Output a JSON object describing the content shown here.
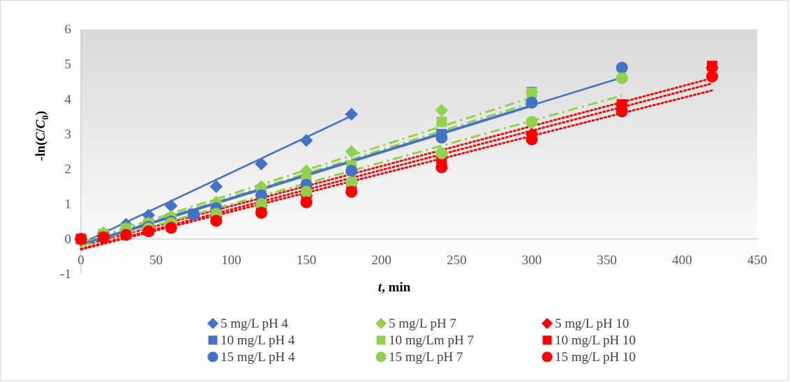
{
  "chart_data": {
    "type": "scatter",
    "title": "",
    "xlabel_italic": "t",
    "xlabel_rest": ", min",
    "ylabel_prefix": "-ln(",
    "ylabel_c": "C",
    "ylabel_slash": "/",
    "ylabel_c0": "C",
    "ylabel_sub": "0",
    "ylabel_suffix": ")",
    "xlim": [
      0,
      450
    ],
    "ylim": [
      -1,
      6
    ],
    "xticks": [
      "0",
      "50",
      "100",
      "150",
      "200",
      "250",
      "300",
      "350",
      "400",
      "450"
    ],
    "yticks": [
      "-1",
      "0",
      "1",
      "2",
      "3",
      "4",
      "5",
      "6"
    ],
    "background": "gradient grey to white (top to bottom)",
    "legend_position": "bottom",
    "series": [
      {
        "name": "5 mg/L pH 4",
        "marker": "diamond",
        "color": "#4472C4",
        "line": "solid",
        "x": [
          0,
          15,
          30,
          45,
          60,
          90,
          120,
          150,
          180
        ],
        "y": [
          0,
          0.15,
          0.42,
          0.68,
          0.95,
          1.5,
          2.15,
          2.82,
          3.57
        ],
        "fit": [
          [
            0,
            -0.13
          ],
          [
            180,
            3.52
          ]
        ]
      },
      {
        "name": "5 mg/L pH 7",
        "marker": "diamond",
        "color": "#92D050",
        "line": "dashdot",
        "x": [
          0,
          15,
          30,
          45,
          60,
          90,
          120,
          150,
          180,
          240,
          300
        ],
        "y": [
          0,
          0.18,
          0.3,
          0.45,
          0.65,
          1.05,
          1.5,
          1.95,
          2.5,
          3.68,
          4.2
        ],
        "fit": [
          [
            0,
            -0.1
          ],
          [
            300,
            4.05
          ]
        ]
      },
      {
        "name": "5 mg/L pH 10",
        "marker": "diamond",
        "color": "#FF0000",
        "line": "dotted",
        "x": [
          0,
          15,
          30,
          45,
          60,
          90,
          120,
          150,
          180,
          240,
          300,
          360,
          420
        ],
        "y": [
          0,
          0.08,
          0.2,
          0.3,
          0.42,
          0.65,
          0.95,
          1.25,
          1.6,
          2.35,
          3.0,
          3.82,
          4.9
        ],
        "fit": [
          [
            0,
            -0.2
          ],
          [
            420,
            4.6
          ]
        ]
      },
      {
        "name": "10 mg/L pH 4",
        "marker": "square",
        "color": "#4472C4",
        "line": "solid",
        "x": [
          0,
          15,
          30,
          45,
          60,
          75,
          90,
          120,
          150,
          180,
          240,
          300
        ],
        "y": [
          0,
          0.1,
          0.25,
          0.4,
          0.55,
          0.72,
          0.95,
          1.35,
          1.65,
          2.0,
          3.0,
          4.2
        ],
        "fit": [
          [
            0,
            -0.18
          ],
          [
            300,
            3.8
          ]
        ]
      },
      {
        "name": "10 mg/Lm pH 7",
        "marker": "square",
        "color": "#92D050",
        "line": "dashdot",
        "x": [
          0,
          15,
          30,
          45,
          60,
          90,
          120,
          150,
          180,
          240,
          300
        ],
        "y": [
          0,
          0.15,
          0.3,
          0.45,
          0.6,
          0.95,
          1.35,
          1.72,
          2.1,
          3.35,
          4.18
        ],
        "fit": [
          [
            0,
            -0.15
          ],
          [
            300,
            3.9
          ]
        ]
      },
      {
        "name": "10 mg/L pH 10",
        "marker": "square",
        "color": "#FF0000",
        "line": "dotted",
        "x": [
          0,
          15,
          30,
          45,
          60,
          90,
          120,
          150,
          180,
          240,
          300,
          360,
          420
        ],
        "y": [
          0,
          0.06,
          0.15,
          0.25,
          0.38,
          0.58,
          0.82,
          1.12,
          1.45,
          2.15,
          2.95,
          3.85,
          4.95
        ],
        "fit": [
          [
            0,
            -0.28
          ],
          [
            420,
            4.45
          ]
        ]
      },
      {
        "name": "15 mg/L pH 4",
        "marker": "circle",
        "color": "#4472C4",
        "line": "solid",
        "x": [
          0,
          15,
          30,
          45,
          60,
          75,
          90,
          120,
          150,
          180,
          240,
          300,
          360
        ],
        "y": [
          0,
          0.08,
          0.2,
          0.35,
          0.5,
          0.7,
          0.88,
          1.25,
          1.55,
          1.95,
          2.9,
          3.9,
          4.9
        ],
        "fit": [
          [
            0,
            -0.15
          ],
          [
            360,
            4.62
          ]
        ]
      },
      {
        "name": "15 mg/L pH 7",
        "marker": "circle",
        "color": "#92D050",
        "line": "dashdot",
        "x": [
          0,
          15,
          30,
          45,
          60,
          90,
          120,
          150,
          180,
          240,
          300,
          360
        ],
        "y": [
          0,
          0.08,
          0.2,
          0.3,
          0.45,
          0.72,
          1.0,
          1.35,
          1.62,
          2.45,
          3.35,
          4.6
        ],
        "fit": [
          [
            0,
            -0.2
          ],
          [
            360,
            4.1
          ]
        ]
      },
      {
        "name": "15 mg/L pH 10",
        "marker": "circle",
        "color": "#FF0000",
        "line": "dotted",
        "x": [
          0,
          15,
          30,
          45,
          60,
          90,
          120,
          150,
          180,
          240,
          300,
          360,
          420
        ],
        "y": [
          0,
          0.05,
          0.12,
          0.22,
          0.32,
          0.52,
          0.75,
          1.05,
          1.35,
          2.05,
          2.85,
          3.65,
          4.65
        ],
        "fit": [
          [
            0,
            -0.3
          ],
          [
            420,
            4.25
          ]
        ]
      }
    ]
  }
}
